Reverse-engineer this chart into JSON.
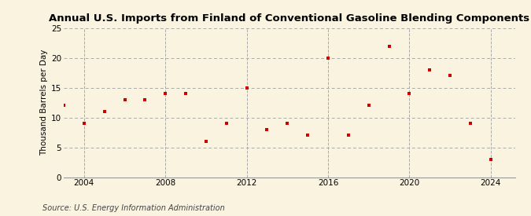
{
  "title": "Annual U.S. Imports from Finland of Conventional Gasoline Blending Components",
  "ylabel": "Thousand Barrels per Day",
  "source": "Source: U.S. Energy Information Administration",
  "years": [
    2003,
    2004,
    2005,
    2006,
    2007,
    2008,
    2009,
    2010,
    2011,
    2012,
    2013,
    2014,
    2015,
    2016,
    2017,
    2018,
    2019,
    2020,
    2021,
    2022,
    2023,
    2024
  ],
  "values": [
    12,
    9,
    11,
    13,
    13,
    14,
    14,
    6,
    9,
    15,
    8,
    9,
    7,
    20,
    7,
    12,
    22,
    14,
    18,
    17,
    9,
    3
  ],
  "marker_color": "#cc0000",
  "background_color": "#faf3e0",
  "grid_color": "#aaaaaa",
  "xlim": [
    2003.0,
    2025.2
  ],
  "ylim": [
    0,
    25
  ],
  "yticks": [
    0,
    5,
    10,
    15,
    20,
    25
  ],
  "xticks": [
    2004,
    2008,
    2012,
    2016,
    2020,
    2024
  ],
  "title_fontsize": 9.5,
  "label_fontsize": 7.5,
  "tick_fontsize": 7.5,
  "source_fontsize": 7.0
}
